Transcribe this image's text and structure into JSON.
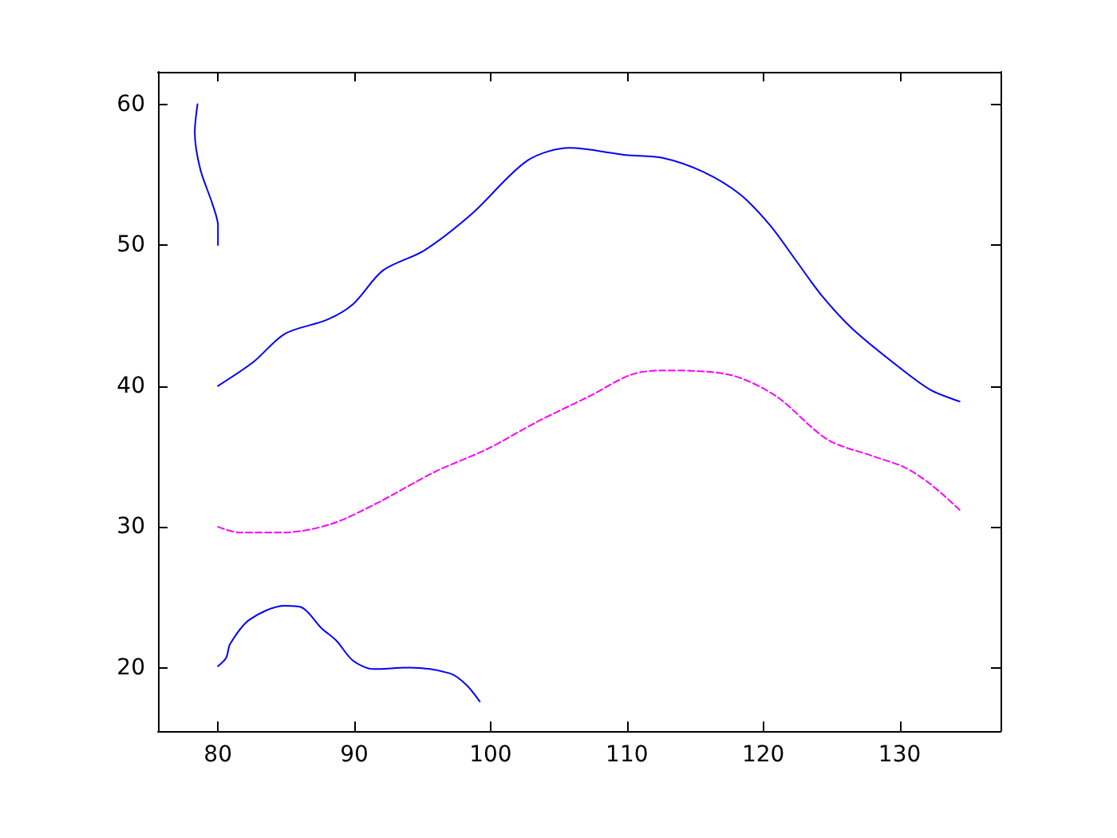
{
  "chart_data": {
    "type": "line",
    "xlim": [
      75.6,
      137.4
    ],
    "ylim": [
      15.5,
      62.3
    ],
    "xticks": [
      80,
      90,
      100,
      110,
      120,
      130
    ],
    "yticks": [
      20,
      30,
      40,
      50,
      60
    ],
    "grid": false,
    "marker": "none",
    "series": [
      {
        "color": "#0000ff",
        "line_style": "solid",
        "x": [
          80,
          80,
          79.6,
          78.7,
          78.3,
          78.5
        ],
        "values": [
          50,
          51.4,
          52.9,
          55.4,
          58,
          60
        ]
      },
      {
        "color": "#0000ff",
        "line_style": "solid",
        "x": [
          80,
          82.6,
          84.9,
          88,
          89.9,
          92.1,
          95.1,
          98.6,
          102.7,
          105.8,
          109.9,
          112.6,
          115.6,
          118.3,
          120.5,
          122.4,
          124.3,
          126.6,
          130,
          132.3,
          134.4
        ],
        "values": [
          40,
          41.7,
          43.7,
          44.7,
          45.8,
          48.2,
          49.6,
          52.2,
          56,
          56.9,
          56.4,
          56.2,
          55.2,
          53.6,
          51.4,
          48.9,
          46.4,
          44,
          41.3,
          39.7,
          38.9
        ]
      },
      {
        "color": "#ff00ff",
        "line_style": "dashed",
        "x": [
          80,
          81.5,
          84.9,
          88.3,
          91.7,
          95.9,
          99.7,
          103.5,
          107.3,
          110.3,
          112.6,
          117.5,
          120.9,
          124.7,
          128.1,
          130.4,
          132.3,
          134.4
        ],
        "values": [
          30,
          29.6,
          29.6,
          30.2,
          31.7,
          33.9,
          35.5,
          37.5,
          39.3,
          40.8,
          41.1,
          40.8,
          39.3,
          36.2,
          35,
          34.2,
          33,
          31.2
        ]
      },
      {
        "color": "#0000ff",
        "line_style": "solid",
        "x": [
          80,
          80.6,
          80.9,
          82.3,
          84.9,
          86.1,
          87.6,
          88.7,
          89.9,
          91.4,
          94,
          97,
          98.2,
          99.2
        ],
        "values": [
          20.1,
          20.7,
          21.7,
          23.4,
          24.4,
          24.3,
          22.8,
          21.9,
          20.5,
          19.9,
          20,
          19.6,
          18.8,
          17.6
        ]
      }
    ]
  }
}
